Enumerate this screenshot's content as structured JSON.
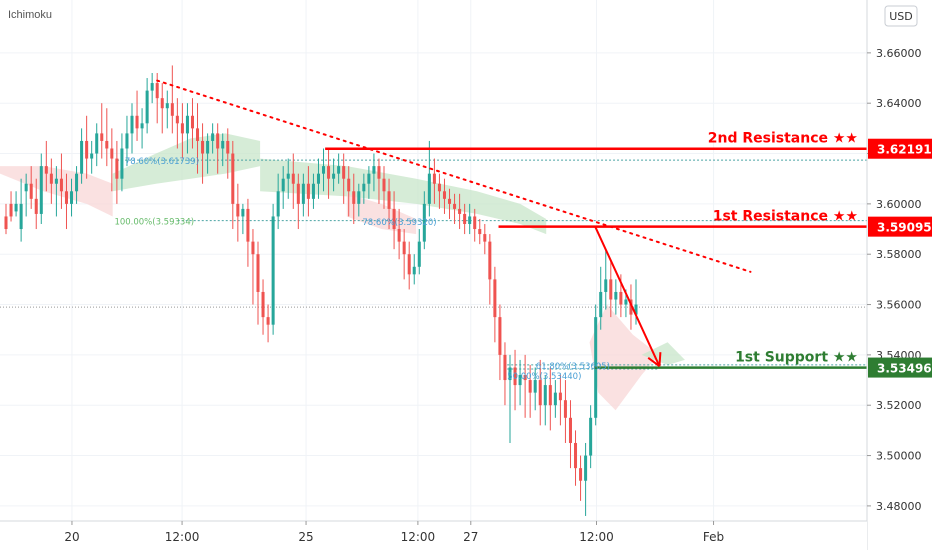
{
  "header": {
    "indicator": "Ichimoku",
    "currency": "USD"
  },
  "colors": {
    "up": "#26a69a",
    "down": "#ef5350",
    "resistance": "#ff0000",
    "support": "#2e7d32",
    "fib_text": "#4a9fd5",
    "fib_line": "#4aa3a3",
    "cloud_green": "#c8e6c9",
    "cloud_red": "#f8d7d7",
    "price_marker_bg": "#ffffff",
    "axis_text": "#333333"
  },
  "chart_data": {
    "type": "candlestick",
    "x_labels": [
      "20",
      "12:00",
      "25",
      "12:00",
      "27",
      "12:00",
      "Feb"
    ],
    "y_ticks": [
      "3.48000",
      "3.50000",
      "3.52000",
      "3.54000",
      "3.56000",
      "3.58000",
      "3.60000",
      "3.62000",
      "3.64000",
      "3.66000"
    ],
    "y_tick_values": [
      3.48,
      3.5,
      3.52,
      3.54,
      3.56,
      3.58,
      3.6,
      3.62,
      3.64,
      3.66
    ],
    "ylim": [
      3.474,
      3.681
    ],
    "current_price": 3.559,
    "levels": [
      {
        "name": "2nd Resistance ★★",
        "value": 3.62191,
        "label": "3.62191",
        "kind": "resistance"
      },
      {
        "name": "1st Resistance ★★",
        "value": 3.59095,
        "label": "3.59095",
        "kind": "resistance"
      },
      {
        "name": "1st Support ★★",
        "value": 3.53496,
        "label": "3.53496",
        "kind": "support"
      }
    ],
    "fib_labels": [
      {
        "text": "78.60%(3.61739)",
        "value": 3.61739
      },
      {
        "text": "100.00%(3.59334)",
        "value": 3.59334
      },
      {
        "text": "78.60%(3.59320)",
        "value": 3.5932
      },
      {
        "text": "61.80%(3.53605)",
        "value": 3.53605
      },
      {
        "text": "50.00%(3.53440)",
        "value": 3.5344
      }
    ],
    "candles": [
      [
        3.595,
        3.6,
        3.59,
        3.588
      ],
      [
        3.6,
        3.605,
        3.595,
        3.593
      ],
      [
        3.597,
        3.605,
        3.6,
        3.595
      ],
      [
        3.59,
        3.61,
        3.6,
        3.585
      ],
      [
        3.605,
        3.612,
        3.608,
        3.595
      ],
      [
        3.608,
        3.615,
        3.602,
        3.598
      ],
      [
        3.602,
        3.61,
        3.596,
        3.59
      ],
      [
        3.596,
        3.62,
        3.615,
        3.592
      ],
      [
        3.615,
        3.625,
        3.612,
        3.605
      ],
      [
        3.612,
        3.618,
        3.608,
        3.6
      ],
      [
        3.608,
        3.615,
        3.61,
        3.595
      ],
      [
        3.61,
        3.62,
        3.605,
        3.598
      ],
      [
        3.605,
        3.612,
        3.6,
        3.59
      ],
      [
        3.6,
        3.61,
        3.605,
        3.595
      ],
      [
        3.605,
        3.615,
        3.612,
        3.6
      ],
      [
        3.612,
        3.63,
        3.625,
        3.608
      ],
      [
        3.625,
        3.635,
        3.618,
        3.61
      ],
      [
        3.618,
        3.625,
        3.62,
        3.612
      ],
      [
        3.62,
        3.632,
        3.628,
        3.615
      ],
      [
        3.628,
        3.64,
        3.625,
        3.618
      ],
      [
        3.625,
        3.638,
        3.622,
        3.615
      ],
      [
        3.622,
        3.63,
        3.618,
        3.605
      ],
      [
        3.618,
        3.625,
        3.61,
        3.6
      ],
      [
        3.61,
        3.628,
        3.622,
        3.605
      ],
      [
        3.622,
        3.635,
        3.628,
        3.615
      ],
      [
        3.628,
        3.64,
        3.635,
        3.62
      ],
      [
        3.635,
        3.645,
        3.63,
        3.625
      ],
      [
        3.63,
        3.638,
        3.632,
        3.622
      ],
      [
        3.632,
        3.65,
        3.645,
        3.628
      ],
      [
        3.645,
        3.652,
        3.648,
        3.64
      ],
      [
        3.648,
        3.652,
        3.642,
        3.632
      ],
      [
        3.642,
        3.648,
        3.638,
        3.628
      ],
      [
        3.638,
        3.645,
        3.64,
        3.63
      ],
      [
        3.64,
        3.655,
        3.635,
        3.628
      ],
      [
        3.635,
        3.642,
        3.632,
        3.622
      ],
      [
        3.632,
        3.64,
        3.628,
        3.618
      ],
      [
        3.628,
        3.64,
        3.635,
        3.62
      ],
      [
        3.635,
        3.642,
        3.63,
        3.622
      ],
      [
        3.63,
        3.64,
        3.625,
        3.612
      ],
      [
        3.625,
        3.632,
        3.62,
        3.608
      ],
      [
        3.62,
        3.628,
        3.625,
        3.612
      ],
      [
        3.625,
        3.632,
        3.628,
        3.62
      ],
      [
        3.628,
        3.632,
        3.622,
        3.612
      ],
      [
        3.622,
        3.628,
        3.625,
        3.615
      ],
      [
        3.625,
        3.63,
        3.62,
        3.61
      ],
      [
        3.62,
        3.625,
        3.6,
        3.59
      ],
      [
        3.6,
        3.608,
        3.595,
        3.585
      ],
      [
        3.595,
        3.6,
        3.598,
        3.588
      ],
      [
        3.598,
        3.602,
        3.585,
        3.575
      ],
      [
        3.585,
        3.59,
        3.58,
        3.56
      ],
      [
        3.58,
        3.585,
        3.565,
        3.552
      ],
      [
        3.565,
        3.57,
        3.555,
        3.548
      ],
      [
        3.555,
        3.56,
        3.552,
        3.545
      ],
      [
        3.552,
        3.6,
        3.595,
        3.548
      ],
      [
        3.595,
        3.612,
        3.605,
        3.59
      ],
      [
        3.605,
        3.615,
        3.61,
        3.598
      ],
      [
        3.61,
        3.618,
        3.612,
        3.602
      ],
      [
        3.612,
        3.62,
        3.608,
        3.598
      ],
      [
        3.608,
        3.612,
        3.6,
        3.59
      ],
      [
        3.6,
        3.612,
        3.608,
        3.595
      ],
      [
        3.608,
        3.615,
        3.602,
        3.595
      ],
      [
        3.602,
        3.612,
        3.608,
        3.598
      ],
      [
        3.608,
        3.618,
        3.612,
        3.602
      ],
      [
        3.612,
        3.622,
        3.615,
        3.605
      ],
      [
        3.615,
        3.622,
        3.61,
        3.602
      ],
      [
        3.61,
        3.618,
        3.612,
        3.605
      ],
      [
        3.612,
        3.62,
        3.615,
        3.608
      ],
      [
        3.615,
        3.62,
        3.61,
        3.6
      ],
      [
        3.61,
        3.615,
        3.605,
        3.595
      ],
      [
        3.605,
        3.612,
        3.6,
        3.592
      ],
      [
        3.6,
        3.608,
        3.605,
        3.595
      ],
      [
        3.605,
        3.612,
        3.608,
        3.6
      ],
      [
        3.608,
        3.615,
        3.612,
        3.602
      ],
      [
        3.612,
        3.62,
        3.615,
        3.605
      ],
      [
        3.615,
        3.618,
        3.61,
        3.6
      ],
      [
        3.61,
        3.615,
        3.605,
        3.598
      ],
      [
        3.605,
        3.61,
        3.598,
        3.59
      ],
      [
        3.598,
        3.605,
        3.59,
        3.582
      ],
      [
        3.59,
        3.598,
        3.585,
        3.578
      ],
      [
        3.585,
        3.59,
        3.58,
        3.57
      ],
      [
        3.58,
        3.585,
        3.572,
        3.566
      ],
      [
        3.572,
        3.58,
        3.575,
        3.568
      ],
      [
        3.575,
        3.59,
        3.585,
        3.572
      ],
      [
        3.585,
        3.605,
        3.6,
        3.582
      ],
      [
        3.6,
        3.625,
        3.612,
        3.595
      ],
      [
        3.612,
        3.618,
        3.608,
        3.6
      ],
      [
        3.608,
        3.612,
        3.605,
        3.598
      ],
      [
        3.605,
        3.61,
        3.602,
        3.596
      ],
      [
        3.602,
        3.606,
        3.6,
        3.594
      ],
      [
        3.6,
        3.604,
        3.598,
        3.592
      ],
      [
        3.598,
        3.604,
        3.596,
        3.59
      ],
      [
        3.596,
        3.6,
        3.592,
        3.588
      ],
      [
        3.592,
        3.6,
        3.595,
        3.588
      ],
      [
        3.595,
        3.598,
        3.59,
        3.585
      ],
      [
        3.59,
        3.594,
        3.588,
        3.584
      ],
      [
        3.588,
        3.592,
        3.585,
        3.58
      ],
      [
        3.585,
        3.588,
        3.57,
        3.56
      ],
      [
        3.57,
        3.575,
        3.555,
        3.545
      ],
      [
        3.555,
        3.56,
        3.54,
        3.53
      ],
      [
        3.54,
        3.545,
        3.53,
        3.52
      ],
      [
        3.53,
        3.54,
        3.535,
        3.505
      ],
      [
        3.535,
        3.542,
        3.528,
        3.518
      ],
      [
        3.528,
        3.538,
        3.532,
        3.52
      ],
      [
        3.532,
        3.54,
        3.53,
        3.515
      ],
      [
        3.53,
        3.536,
        3.525,
        3.515
      ],
      [
        3.525,
        3.535,
        3.53,
        3.518
      ],
      [
        3.53,
        3.538,
        3.52,
        3.512
      ],
      [
        3.52,
        3.532,
        3.528,
        3.512
      ],
      [
        3.528,
        3.535,
        3.52,
        3.51
      ],
      [
        3.52,
        3.53,
        3.525,
        3.515
      ],
      [
        3.525,
        3.532,
        3.522,
        3.512
      ],
      [
        3.522,
        3.53,
        3.515,
        3.505
      ],
      [
        3.515,
        3.522,
        3.505,
        3.495
      ],
      [
        3.505,
        3.51,
        3.495,
        3.488
      ],
      [
        3.495,
        3.5,
        3.49,
        3.482
      ],
      [
        3.49,
        3.505,
        3.5,
        3.476
      ],
      [
        3.5,
        3.52,
        3.515,
        3.495
      ],
      [
        3.515,
        3.56,
        3.555,
        3.512
      ],
      [
        3.555,
        3.575,
        3.565,
        3.55
      ],
      [
        3.565,
        3.582,
        3.57,
        3.558
      ],
      [
        3.57,
        3.578,
        3.562,
        3.555
      ],
      [
        3.562,
        3.57,
        3.565,
        3.556
      ],
      [
        3.565,
        3.572,
        3.56,
        3.555
      ],
      [
        3.56,
        3.566,
        3.562,
        3.555
      ],
      [
        3.562,
        3.568,
        3.556,
        3.55
      ],
      [
        3.556,
        3.57,
        3.56,
        3.552
      ]
    ],
    "trendline": {
      "from": [
        0.1813,
        3.649
      ],
      "to": [
        0.8656,
        3.573
      ]
    },
    "arrow": {
      "from": [
        0.6866,
        3.5909
      ],
      "to": [
        0.7606,
        3.5355
      ]
    },
    "ichimoku_cloud": [
      {
        "color": "red",
        "points": [
          [
            0.0,
            3.612
          ],
          [
            0.05,
            3.605
          ],
          [
            0.1,
            3.6
          ],
          [
            0.13,
            3.595
          ],
          [
            0.13,
            3.608
          ],
          [
            0.1,
            3.612
          ],
          [
            0.05,
            3.615
          ],
          [
            0.0,
            3.615
          ]
        ]
      },
      {
        "color": "green",
        "points": [
          [
            0.13,
            3.612
          ],
          [
            0.18,
            3.62
          ],
          [
            0.22,
            3.626
          ],
          [
            0.26,
            3.628
          ],
          [
            0.3,
            3.625
          ],
          [
            0.3,
            3.615
          ],
          [
            0.26,
            3.612
          ],
          [
            0.22,
            3.61
          ],
          [
            0.18,
            3.608
          ],
          [
            0.13,
            3.605
          ]
        ]
      },
      {
        "color": "green",
        "points": [
          [
            0.3,
            3.618
          ],
          [
            0.4,
            3.615
          ],
          [
            0.48,
            3.61
          ],
          [
            0.55,
            3.605
          ],
          [
            0.6,
            3.6
          ],
          [
            0.63,
            3.594
          ],
          [
            0.63,
            3.588
          ],
          [
            0.6,
            3.592
          ],
          [
            0.55,
            3.596
          ],
          [
            0.48,
            3.6
          ],
          [
            0.4,
            3.603
          ],
          [
            0.3,
            3.605
          ]
        ]
      },
      {
        "color": "red",
        "points": [
          [
            0.4,
            3.604
          ],
          [
            0.44,
            3.6
          ],
          [
            0.48,
            3.594
          ],
          [
            0.48,
            3.588
          ],
          [
            0.44,
            3.59
          ],
          [
            0.4,
            3.595
          ]
        ]
      },
      {
        "color": "red",
        "points": [
          [
            0.7,
            3.56
          ],
          [
            0.73,
            3.548
          ],
          [
            0.76,
            3.54
          ],
          [
            0.74,
            3.532
          ],
          [
            0.71,
            3.518
          ],
          [
            0.69,
            3.525
          ],
          [
            0.68,
            3.545
          ]
        ]
      },
      {
        "color": "green",
        "points": [
          [
            0.74,
            3.54
          ],
          [
            0.77,
            3.545
          ],
          [
            0.79,
            3.538
          ],
          [
            0.77,
            3.536
          ]
        ]
      }
    ]
  }
}
